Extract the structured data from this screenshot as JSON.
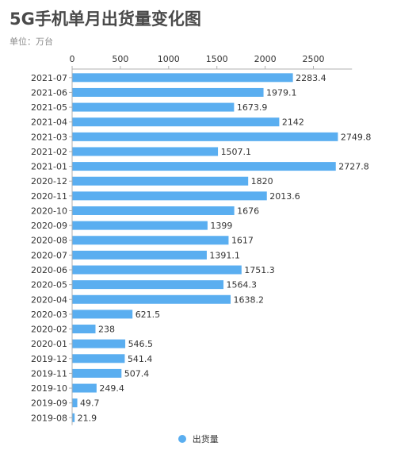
{
  "chart_data": {
    "type": "bar",
    "orientation": "horizontal",
    "title": "5G手机单月出货量变化图",
    "subtitle": "单位：万台",
    "categories": [
      "2021-07",
      "2021-06",
      "2021-05",
      "2021-04",
      "2021-03",
      "2021-02",
      "2021-01",
      "2020-12",
      "2020-11",
      "2020-10",
      "2020-09",
      "2020-08",
      "2020-07",
      "2020-06",
      "2020-05",
      "2020-04",
      "2020-03",
      "2020-02",
      "2020-01",
      "2019-12",
      "2019-11",
      "2019-10",
      "2019-09",
      "2019-08"
    ],
    "series": [
      {
        "name": "出货量",
        "color": "#5aaef0",
        "values": [
          2283.4,
          1979.1,
          1673.9,
          2142,
          2749.8,
          1507.1,
          2727.8,
          1820,
          2013.6,
          1676,
          1399,
          1617,
          1391.1,
          1751.3,
          1564.3,
          1638.2,
          621.5,
          238,
          546.5,
          541.4,
          507.4,
          249.4,
          49.7,
          21.9
        ]
      }
    ],
    "value_axis": {
      "min": 0,
      "max": 2900,
      "ticks": [
        0,
        500,
        1000,
        1500,
        2000,
        2500
      ],
      "position": "top"
    },
    "grid": false,
    "legend": "bottom-center"
  }
}
